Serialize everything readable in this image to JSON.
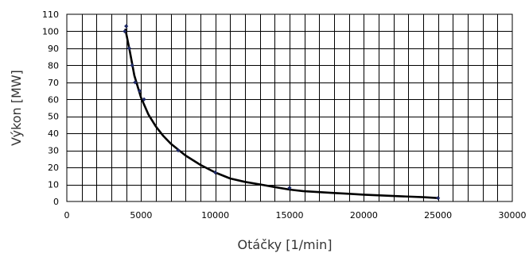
{
  "chart_data": {
    "type": "scatter",
    "title": "",
    "xlabel": "Otáčky [1/min]",
    "ylabel": "Výkon [MW]",
    "xlim": [
      0,
      30000
    ],
    "ylim": [
      0,
      110
    ],
    "x_ticks": [
      0,
      5000,
      10000,
      15000,
      20000,
      25000,
      30000
    ],
    "x_tick_labels": [
      "0",
      "5000",
      "10000",
      "15000",
      "20000",
      "25000",
      "30000"
    ],
    "y_ticks": [
      0,
      10,
      20,
      30,
      40,
      50,
      60,
      70,
      80,
      90,
      100,
      110
    ],
    "y_tick_labels": [
      "0",
      "10",
      "20",
      "30",
      "40",
      "50",
      "60",
      "70",
      "80",
      "90",
      "100",
      "110"
    ],
    "x_grid_step": 1000,
    "y_grid_step": 10,
    "grid": true,
    "legend": "none",
    "colors": {
      "marker": "#1f2a66",
      "curve": "#000000",
      "grid": "#000000"
    },
    "series": [
      {
        "values": [
          {
            "x": 3900,
            "y": 100
          },
          {
            "x": 4000,
            "y": 103
          },
          {
            "x": 4200,
            "y": 90
          },
          {
            "x": 4400,
            "y": 80
          },
          {
            "x": 4600,
            "y": 70
          },
          {
            "x": 4900,
            "y": 65
          },
          {
            "x": 5200,
            "y": 60
          },
          {
            "x": 7500,
            "y": 30
          },
          {
            "x": 10000,
            "y": 17
          },
          {
            "x": 15000,
            "y": 8
          },
          {
            "x": 25000,
            "y": 2
          }
        ]
      }
    ],
    "trendline": [
      [
        3950,
        101
      ],
      [
        4250,
        88
      ],
      [
        4550,
        74
      ],
      [
        5000,
        61
      ],
      [
        5500,
        51
      ],
      [
        6000,
        44
      ],
      [
        6500,
        38.5
      ],
      [
        7000,
        34
      ],
      [
        7500,
        30.5
      ],
      [
        8000,
        27
      ],
      [
        9000,
        21.5
      ],
      [
        10000,
        17
      ],
      [
        11000,
        13.5
      ],
      [
        12000,
        11.5
      ],
      [
        13000,
        10
      ],
      [
        14000,
        8.5
      ],
      [
        15000,
        7
      ],
      [
        16000,
        6
      ],
      [
        17000,
        5.5
      ],
      [
        18000,
        5
      ],
      [
        19000,
        4.5
      ],
      [
        20000,
        4
      ],
      [
        22000,
        3.2
      ],
      [
        24000,
        2.5
      ],
      [
        25000,
        2
      ]
    ]
  }
}
